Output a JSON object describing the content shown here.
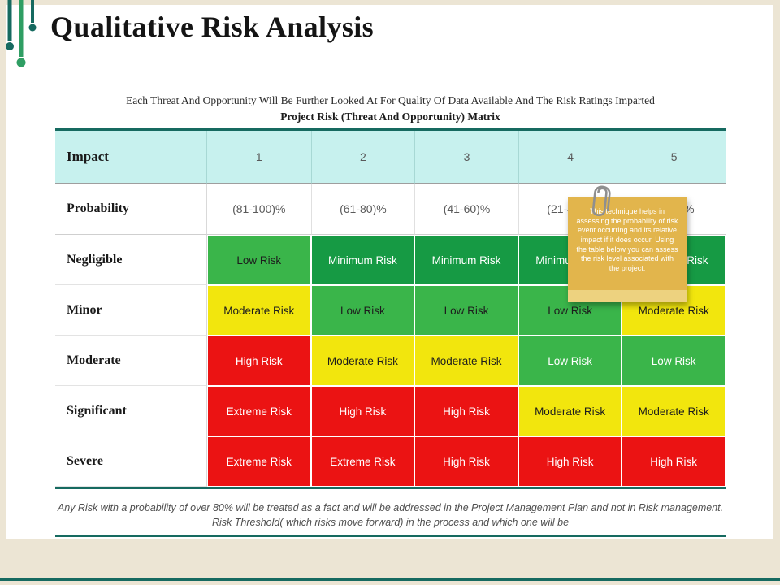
{
  "slide": {
    "title": "Qualitative Risk Analysis",
    "subtitle_line1": "Each Threat And Opportunity Will Be Further Looked At For Quality Of Data Available And The Risk Ratings Imparted",
    "subtitle_line2": "Project Risk (Threat And Opportunity) Matrix",
    "footer": "Any Risk with a probability of over 80% will be treated as a fact and will be addressed in the Project Management Plan and not in Risk management. Risk Threshold( which risks move forward) in the process and which one will be"
  },
  "table": {
    "impact_label": "Impact",
    "impact_values": [
      "1",
      "2",
      "3",
      "4",
      "5"
    ],
    "probability_label": "Probability",
    "probability_values": [
      "(81-100)%",
      "(61-80)%",
      "(41-60)%",
      "(21-40)%",
      "(0-20)%"
    ],
    "rows": [
      {
        "label": "Negligible",
        "cells": [
          {
            "text": "Low Risk",
            "bg": "green",
            "fg": "dark"
          },
          {
            "text": "Minimum Risk",
            "bg": "dark_green",
            "fg": "light"
          },
          {
            "text": "Minimum Risk",
            "bg": "dark_green",
            "fg": "light"
          },
          {
            "text": "Minimum Risk",
            "bg": "dark_green",
            "fg": "light"
          },
          {
            "text": "Minimum Risk",
            "bg": "dark_green",
            "fg": "light"
          }
        ]
      },
      {
        "label": "Minor",
        "cells": [
          {
            "text": "Moderate Risk",
            "bg": "yellow",
            "fg": "dark"
          },
          {
            "text": "Low Risk",
            "bg": "green",
            "fg": "dark"
          },
          {
            "text": "Low Risk",
            "bg": "green",
            "fg": "dark"
          },
          {
            "text": "Low Risk",
            "bg": "green",
            "fg": "dark"
          },
          {
            "text": "Moderate Risk",
            "bg": "yellow",
            "fg": "dark"
          }
        ]
      },
      {
        "label": "Moderate",
        "cells": [
          {
            "text": "High Risk",
            "bg": "red",
            "fg": "light"
          },
          {
            "text": "Moderate Risk",
            "bg": "yellow",
            "fg": "dark"
          },
          {
            "text": "Moderate Risk",
            "bg": "yellow",
            "fg": "dark"
          },
          {
            "text": "Low Risk",
            "bg": "green",
            "fg": "light"
          },
          {
            "text": "Low Risk",
            "bg": "green",
            "fg": "light"
          }
        ]
      },
      {
        "label": "Significant",
        "cells": [
          {
            "text": "Extreme Risk",
            "bg": "red",
            "fg": "light"
          },
          {
            "text": "High Risk",
            "bg": "red",
            "fg": "light"
          },
          {
            "text": "High Risk",
            "bg": "red",
            "fg": "light"
          },
          {
            "text": "Moderate Risk",
            "bg": "yellow",
            "fg": "dark"
          },
          {
            "text": "Moderate Risk",
            "bg": "yellow",
            "fg": "dark"
          }
        ]
      },
      {
        "label": "Severe",
        "cells": [
          {
            "text": "Extreme Risk",
            "bg": "red",
            "fg": "light"
          },
          {
            "text": "Extreme Risk",
            "bg": "red",
            "fg": "light"
          },
          {
            "text": "High Risk",
            "bg": "red",
            "fg": "light"
          },
          {
            "text": "High Risk",
            "bg": "red",
            "fg": "light"
          },
          {
            "text": "High Risk",
            "bg": "red",
            "fg": "light"
          }
        ]
      }
    ]
  },
  "note": {
    "text": "This technique helps in assessing the probability of risk event occurring and its relative impact if it does occur. Using the table below you can assess the risk level associated with the project."
  },
  "icons": {
    "top_left": "plant-icon",
    "note_clip": "paperclip-icon"
  },
  "colors": {
    "teal": "#166a60",
    "header_cyan": "#c7f1ee",
    "green": "#3ab54a",
    "dark_green": "#169a44",
    "yellow": "#f2e60d",
    "red": "#eb1313",
    "note_bg": "#e2b54c",
    "text_light": "#ffffff",
    "text_dark": "#1d1d1d"
  }
}
